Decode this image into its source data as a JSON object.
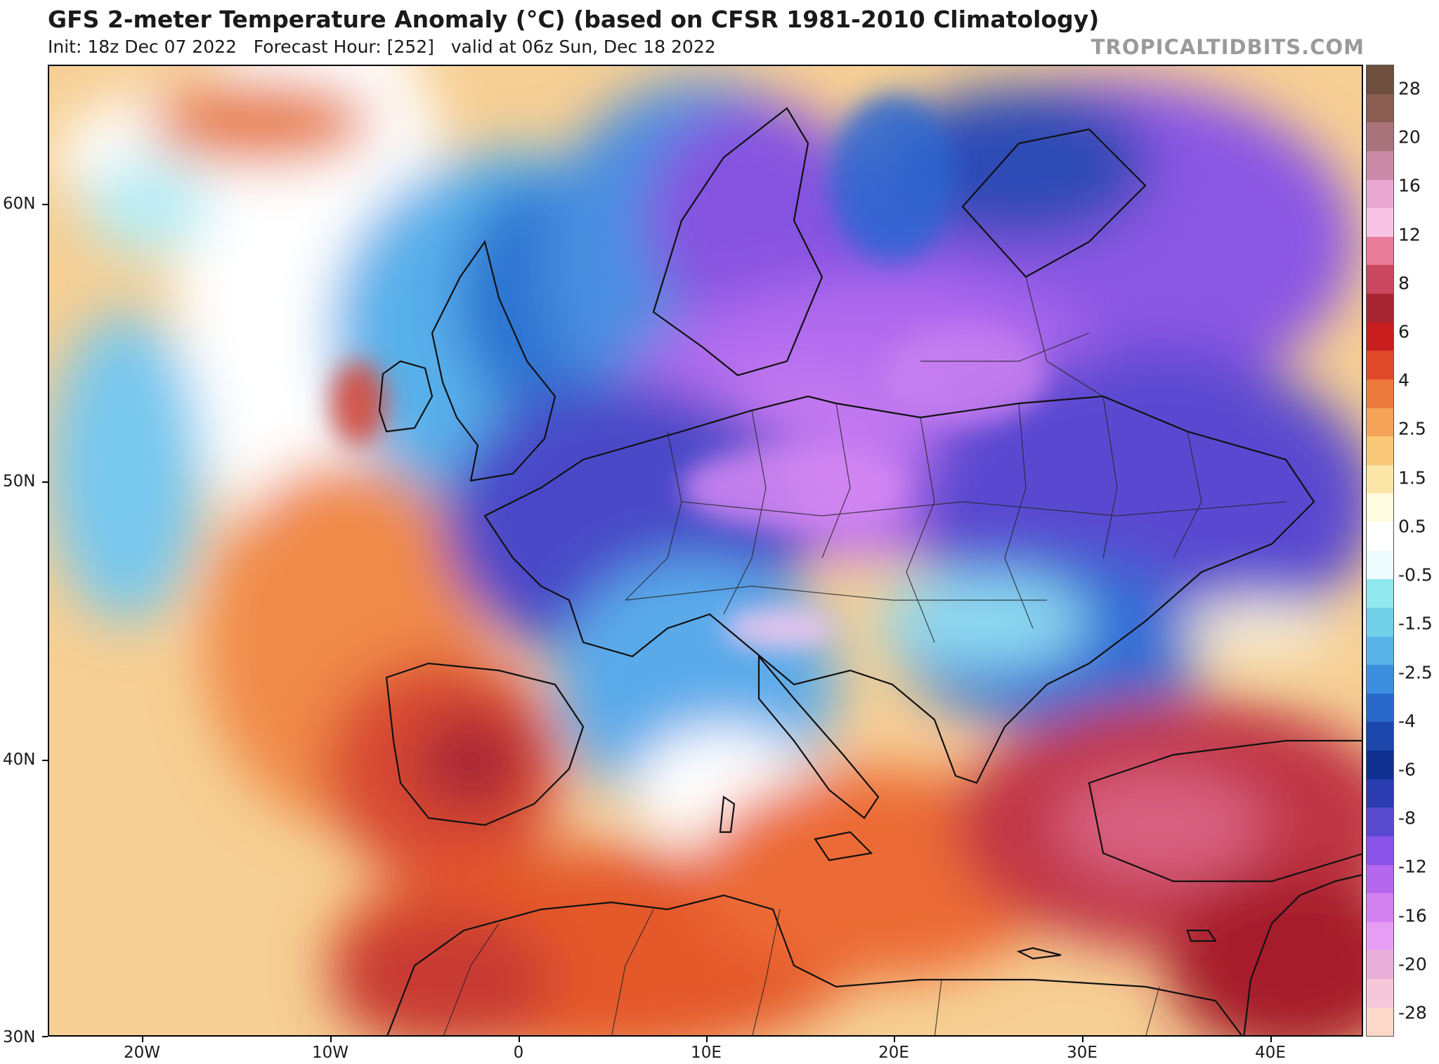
{
  "header": {
    "title": "GFS 2-meter Temperature Anomaly (°C) (based on CFSR 1981-2010 Climatology)",
    "subtitle": "Init: 18z Dec 07 2022   Forecast Hour: [252]   valid at 06z Sun, Dec 18 2022",
    "brand": "TROPICALTIDBITS.COM"
  },
  "map": {
    "region": "Europe / North Africa / Middle East",
    "lon_range": [
      -25,
      45
    ],
    "lat_range": [
      30,
      65
    ],
    "lat_ticks": [
      "60N",
      "50N",
      "40N",
      "30N"
    ],
    "lon_ticks": [
      "20W",
      "10W",
      "0",
      "10E",
      "20E",
      "30E",
      "40E"
    ]
  },
  "colorbar": {
    "labels": [
      "28",
      "20",
      "16",
      "12",
      "8",
      "6",
      "4",
      "2.5",
      "1.5",
      "0.5",
      "-0.5",
      "-1.5",
      "-2.5",
      "-4",
      "-6",
      "-8",
      "-12",
      "-16",
      "-20",
      "-28"
    ],
    "colors": [
      "#6e4e3c",
      "#8a5c52",
      "#a8737a",
      "#c98aa8",
      "#e8a8d2",
      "#f7c4e6",
      "#e87c9a",
      "#c94860",
      "#a82634",
      "#c81e1e",
      "#e04a2a",
      "#ec7a3c",
      "#f4a358",
      "#f8c878",
      "#fbe6a8",
      "#fffbe0",
      "#ffffff",
      "#eefcff",
      "#90e8ec",
      "#70d0e8",
      "#58b4e8",
      "#3c8ede",
      "#2a68cc",
      "#1c48ae",
      "#103090",
      "#2a3cb0",
      "#5a4ad0",
      "#8a54e8",
      "#b468ee",
      "#d280f0",
      "#e69ef4",
      "#e8b0d8",
      "#f4c8d8",
      "#fcd8c8"
    ]
  }
}
